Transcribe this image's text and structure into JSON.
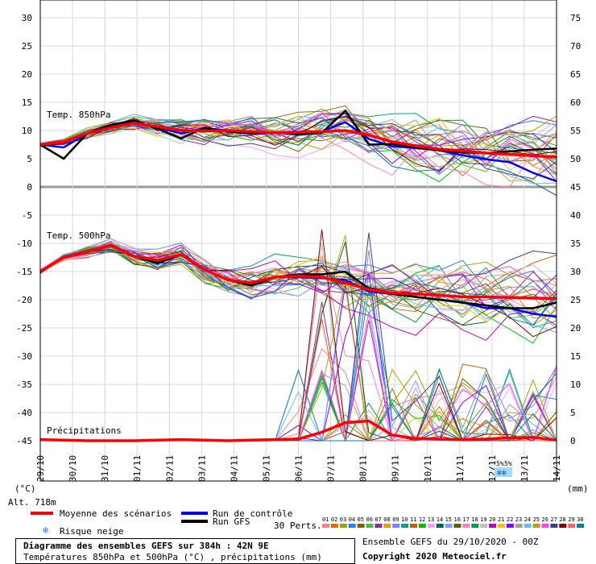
{
  "chart_data": {
    "type": "line",
    "title": "Diagramme des ensembles GEFS sur 384h : 42N 9E",
    "subtitle": "Températures 850hPa et 500hPa (°C) , précipitations (mm)",
    "left_axis": {
      "unit": "(°C)",
      "ticks": [
        "30",
        "25",
        "20",
        "15",
        "10",
        "5",
        "0",
        "-5",
        "-10",
        "-15",
        "-20",
        "-25",
        "-30",
        "-35",
        "-40",
        "-45"
      ],
      "range": [
        -45,
        30
      ]
    },
    "right_axis": {
      "unit": "(mm)",
      "ticks": [
        "75",
        "70",
        "65",
        "60",
        "55",
        "50",
        "45",
        "40",
        "35",
        "30",
        "25",
        "20",
        "15",
        "10",
        "5",
        "0"
      ],
      "range": [
        0,
        75
      ]
    },
    "x_ticks": [
      "30/10",
      "31/10",
      "01/11",
      "02/11",
      "03/11",
      "04/11",
      "05/11",
      "06/11",
      "07/11",
      "08/11",
      "09/11",
      "10/11",
      "11/11",
      "12/11",
      "13/11",
      "14/11"
    ],
    "x_first_tick": "29/10",
    "altitude": "Alt. 718m",
    "panel_labels": [
      "Temp. 850hPa",
      "Temp. 500hPa",
      "Précipitations"
    ],
    "snow_risk_marks": [
      "5%",
      "5%"
    ],
    "mean_t850": [
      7.5,
      8,
      9.5,
      10.5,
      11.3,
      10.7,
      10,
      9.9,
      10,
      9.8,
      9.6,
      9.7,
      9.8,
      10,
      9.2,
      8,
      7.3,
      6.7,
      6.4,
      6,
      5.8,
      5.5,
      5.3
    ],
    "control_t850": [
      7.5,
      7,
      9.5,
      10.8,
      11.5,
      10.5,
      9.5,
      10.4,
      10,
      9.4,
      9.6,
      9.5,
      9.8,
      11.5,
      8.5,
      7.2,
      6.9,
      6.5,
      5.6,
      4.9,
      4.4,
      2.5,
      1
    ],
    "gfs_t850": [
      7.5,
      5,
      9.5,
      11,
      11.8,
      10.3,
      8.6,
      10.5,
      9.8,
      9.5,
      9.7,
      9.3,
      9.6,
      13.5,
      7.5,
      7.6,
      7,
      6.5,
      6.1,
      6,
      6.3,
      6.6,
      6.8
    ],
    "mean_t500": [
      -15,
      -12.5,
      -11.5,
      -10.3,
      -12.3,
      -13,
      -12,
      -14.7,
      -16.5,
      -17,
      -16,
      -15.8,
      -16,
      -17,
      -18.2,
      -18.8,
      -19,
      -19.2,
      -19.5,
      -19.5,
      -19.6,
      -19.7,
      -19.8
    ],
    "control_t500": [
      -15,
      -12.5,
      -11.5,
      -10.3,
      -12.3,
      -13.5,
      -12,
      -14.7,
      -16.5,
      -17,
      -16,
      -16,
      -16.2,
      -16.5,
      -18.5,
      -19,
      -19.5,
      -20,
      -20.5,
      -21.5,
      -21.5,
      -22.5,
      -23
    ],
    "gfs_t500": [
      -15,
      -12.5,
      -11.5,
      -10.3,
      -12.3,
      -13.5,
      -12,
      -14.7,
      -16.5,
      -17.5,
      -16,
      -15.5,
      -15.5,
      -15,
      -18,
      -19,
      -19.5,
      -20,
      -20.5,
      -21,
      -21.5,
      -21.5,
      -20.5
    ],
    "mean_precip": [
      0.2,
      0.1,
      0,
      0,
      0,
      0.1,
      0.2,
      0.1,
      0,
      0.1,
      0.2,
      0.3,
      1.5,
      3.2,
      3.5,
      1,
      0.4,
      0.3,
      0.2,
      0.3,
      0.5,
      0.6,
      0.1
    ],
    "legend": {
      "mean": "Moyenne des scénarios",
      "control": "Run de contrôle",
      "gfs": "Run GFS",
      "snow": "Risque neige",
      "perts": "30 Perts."
    },
    "pert_numbers": [
      "01",
      "02",
      "03",
      "04",
      "05",
      "06",
      "07",
      "08",
      "09",
      "10",
      "11",
      "12",
      "13",
      "14",
      "15",
      "16",
      "17",
      "18",
      "19",
      "20",
      "21",
      "22",
      "23",
      "24",
      "25",
      "26",
      "27",
      "28",
      "29",
      "30"
    ],
    "colors": {
      "mean": "#ff0000",
      "control": "#0000ff",
      "gfs": "#000000"
    },
    "pert_colors": [
      "#ff8080",
      "#e07000",
      "#a0a000",
      "#2080ff",
      "#806000",
      "#40c040",
      "#a020a0",
      "#e0a000",
      "#8080ff",
      "#00a0a0",
      "#c06000",
      "#00c000",
      "#ffa0ff",
      "#006060",
      "#80a0ff",
      "#606000",
      "#ff80c0",
      "#00a040",
      "#c0c0c0",
      "#c000c0",
      "#ffc000",
      "#8000ff",
      "#a0a0a0",
      "#60c0ff",
      "#c0a000",
      "#ff40ff",
      "#404080",
      "#800000",
      "#ff6060",
      "#0080a0"
    ]
  },
  "footer": {
    "source": "Ensemble GEFS du 29/10/2020 - 00Z",
    "copyright": "Copyright 2020 Meteociel.fr"
  }
}
